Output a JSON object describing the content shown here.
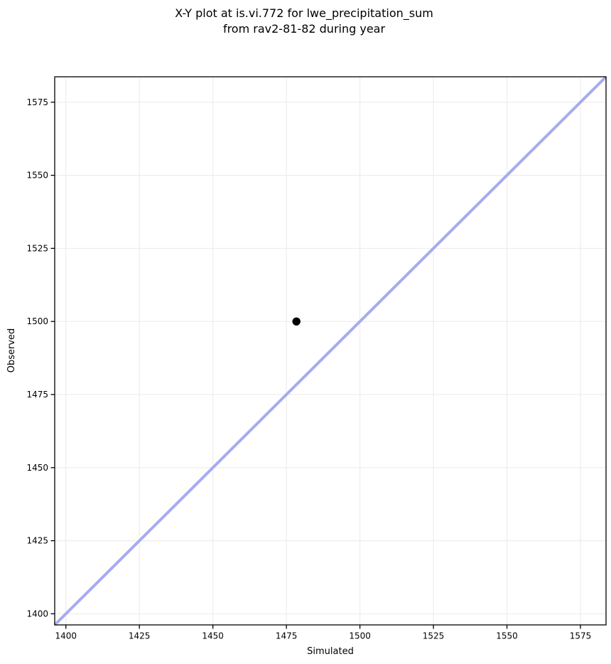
{
  "chart_data": {
    "type": "scatter",
    "title": "X-Y plot at is.vi.772 for lwe_precipitation_sum\nfrom rav2-81-82 during year",
    "title_lines": [
      "X-Y plot at is.vi.772 for lwe_precipitation_sum",
      "from rav2-81-82 during year"
    ],
    "xlabel": "Simulated",
    "ylabel": "Observed",
    "xlim": [
      1396.2,
      1583.7
    ],
    "ylim": [
      1396.2,
      1583.7
    ],
    "xticks": [
      1400,
      1425,
      1450,
      1475,
      1500,
      1525,
      1550,
      1575
    ],
    "yticks": [
      1400,
      1425,
      1450,
      1475,
      1500,
      1525,
      1550,
      1575
    ],
    "grid": true,
    "legend": null,
    "series": [
      {
        "name": "observed_vs_simulated",
        "type": "scatter",
        "points": [
          {
            "x": 1478.4,
            "y": 1500.0
          }
        ],
        "color": "#000000",
        "marker_radius": 5.7
      }
    ],
    "reference_line": {
      "kind": "identity",
      "slope": 1,
      "intercept": 0,
      "color": "#a8aaf0",
      "width": 4
    },
    "colors": {
      "background": "#ffffff",
      "grid": "#ebebeb",
      "spine": "#000000",
      "text": "#000000"
    }
  }
}
